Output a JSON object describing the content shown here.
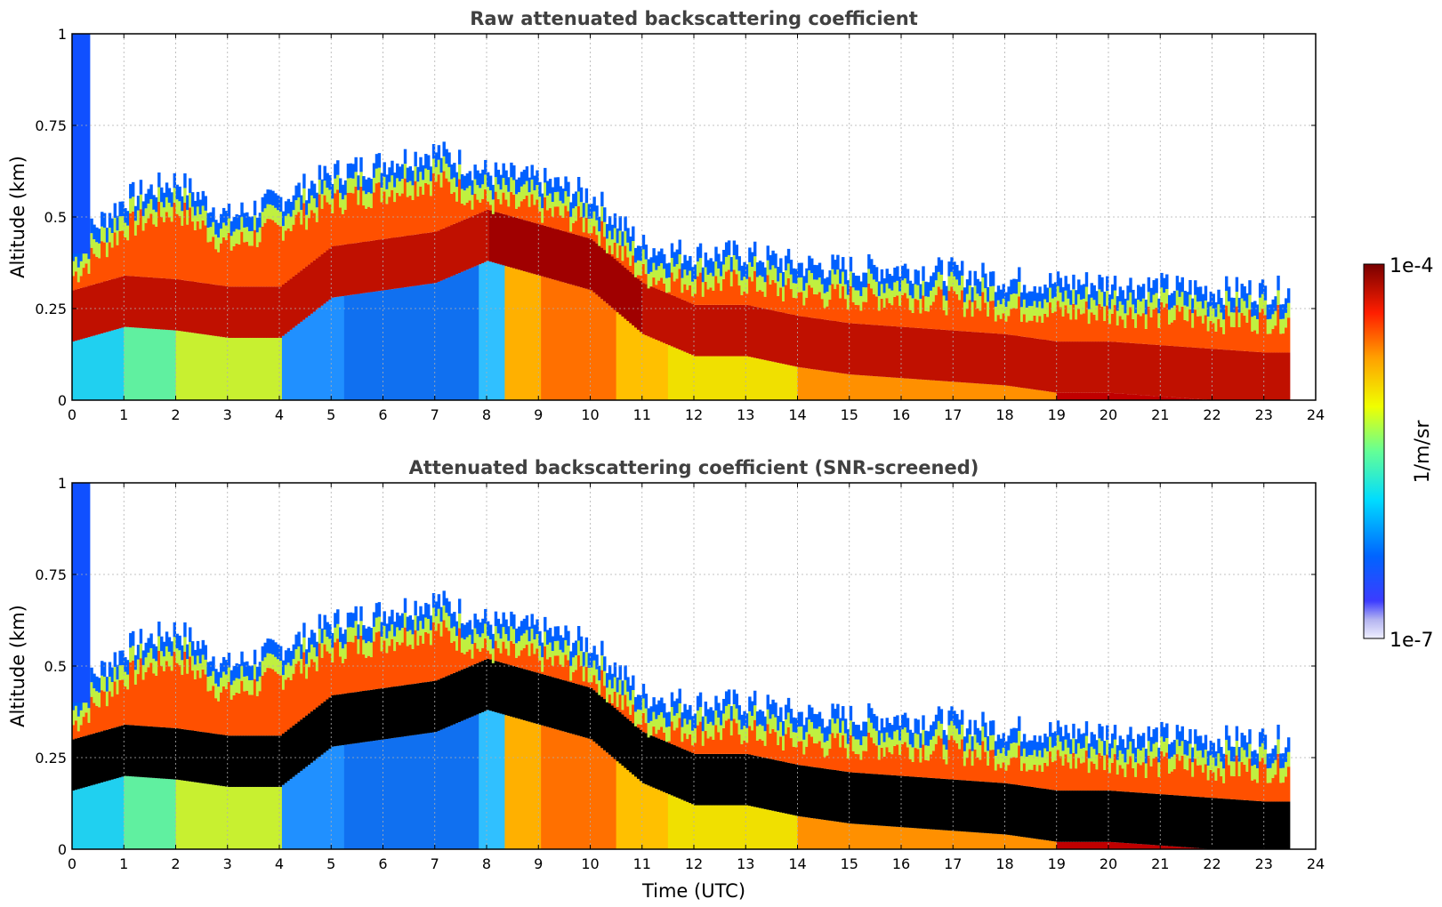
{
  "figure": {
    "colorbar": {
      "max_label": "1e-4",
      "min_label": "1e-7",
      "unit_label": "1/m/sr",
      "scale": "log",
      "range": [
        1e-07,
        0.0001
      ],
      "colormap": [
        "#ffffff",
        "#c8c8f0",
        "#0000ff",
        "#0080ff",
        "#00ffff",
        "#80ff80",
        "#ffff00",
        "#ff8000",
        "#ff0000",
        "#800000"
      ]
    }
  },
  "chart_data": [
    {
      "type": "heatmap",
      "title": "Raw attenuated backscattering coefficient",
      "xlabel": "",
      "ylabel": "Altitude (km)",
      "xlim": [
        0,
        24
      ],
      "ylim": [
        0,
        1
      ],
      "xticks": [
        "0",
        "1",
        "2",
        "3",
        "4",
        "5",
        "6",
        "7",
        "8",
        "9",
        "10",
        "11",
        "12",
        "13",
        "14",
        "15",
        "16",
        "17",
        "18",
        "19",
        "20",
        "21",
        "22",
        "23",
        "24"
      ],
      "yticks": [
        "0",
        "0.25",
        "0.5",
        "0.75",
        "1"
      ],
      "grid": true,
      "data_end_time": 23.5,
      "layer": {
        "description_units": "km",
        "time": [
          0,
          1,
          2,
          3,
          4,
          5,
          6,
          7,
          8,
          9,
          10,
          11,
          12,
          13,
          14,
          15,
          16,
          17,
          18,
          19,
          20,
          21,
          22,
          23,
          23.5
        ],
        "layer_center": [
          0.24,
          0.28,
          0.27,
          0.25,
          0.25,
          0.36,
          0.38,
          0.4,
          0.46,
          0.42,
          0.38,
          0.26,
          0.2,
          0.2,
          0.17,
          0.15,
          0.14,
          0.13,
          0.12,
          0.1,
          0.1,
          0.09,
          0.08,
          0.07,
          0.07
        ],
        "signal_top": [
          0.42,
          0.55,
          0.6,
          0.5,
          0.55,
          0.62,
          0.65,
          0.68,
          0.62,
          0.6,
          0.56,
          0.42,
          0.4,
          0.4,
          0.37,
          0.36,
          0.36,
          0.35,
          0.33,
          0.32,
          0.32,
          0.31,
          0.3,
          0.3,
          0.3
        ]
      }
    },
    {
      "type": "heatmap",
      "title": "Attenuated backscattering coefficient (SNR-screened)",
      "xlabel": "Time (UTC)",
      "ylabel": "Altitude (km)",
      "xlim": [
        0,
        24
      ],
      "ylim": [
        0,
        1
      ],
      "xticks": [
        "0",
        "1",
        "2",
        "3",
        "4",
        "5",
        "6",
        "7",
        "8",
        "9",
        "10",
        "11",
        "12",
        "13",
        "14",
        "15",
        "16",
        "17",
        "18",
        "19",
        "20",
        "21",
        "22",
        "23",
        "24"
      ],
      "yticks": [
        "0",
        "0.25",
        "0.5",
        "0.75",
        "1"
      ],
      "grid": true,
      "data_end_time": 23.5,
      "saturated_color": "#000000"
    }
  ]
}
